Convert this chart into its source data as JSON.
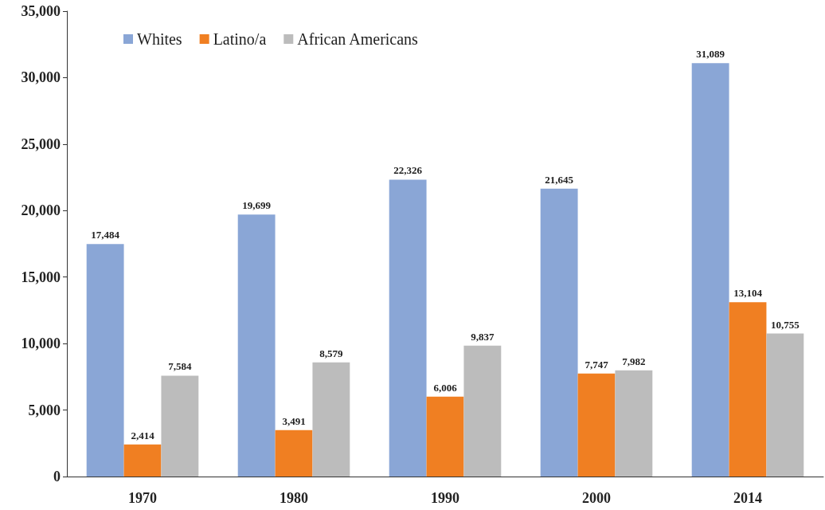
{
  "chart_data": {
    "type": "bar",
    "categories": [
      "1970",
      "1980",
      "1990",
      "2000",
      "2014"
    ],
    "series": [
      {
        "name": "Whites",
        "color": "#8aa6d6",
        "values": [
          17484,
          19699,
          22326,
          21645,
          31089
        ],
        "value_labels": [
          "17,484",
          "19,699",
          "22,326",
          "21,645",
          "31,089"
        ]
      },
      {
        "name": "Latino/a",
        "color": "#f07f22",
        "values": [
          2414,
          3491,
          6006,
          7747,
          13104
        ],
        "value_labels": [
          "2,414",
          "3,491",
          "6,006",
          "7,747",
          "13,104"
        ]
      },
      {
        "name": "African Americans",
        "color": "#bcbcbc",
        "values": [
          7584,
          8579,
          9837,
          7982,
          10755
        ],
        "value_labels": [
          "7,584",
          "8,579",
          "9,837",
          "7,982",
          "10,755"
        ]
      }
    ],
    "ylim": [
      0,
      35000
    ],
    "yticks": [
      0,
      {
        "value": 5000,
        "label": "5,000"
      },
      {
        "value": 10000,
        "label": "10,000"
      },
      {
        "value": 15000,
        "label": "15,000"
      },
      {
        "value": 20000,
        "label": "20,000"
      },
      {
        "value": 25000,
        "label": "25,000"
      },
      {
        "value": 30000,
        "label": "30,000"
      },
      {
        "value": 35000,
        "label": "35,000"
      }
    ],
    "grid": false,
    "legend": "top left"
  }
}
